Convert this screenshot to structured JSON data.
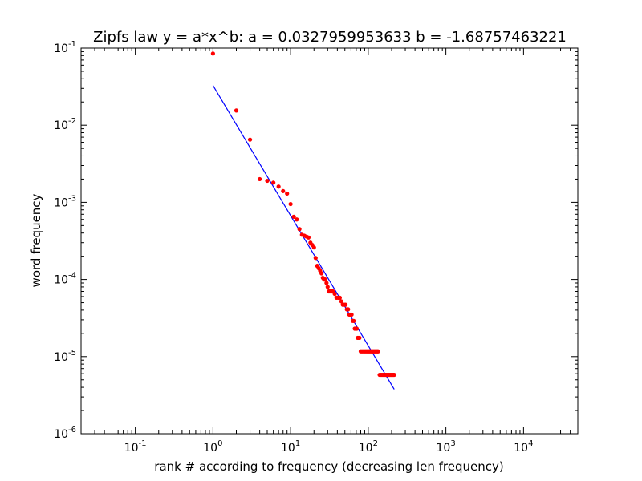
{
  "chart_data": {
    "type": "scatter",
    "title": "Zipfs law y = a*x^b: a = 0.0327959953633 b = -1.68757463221",
    "xlabel": "rank # according to frequency (decreasing len frequency)",
    "ylabel": "word frequency",
    "x_scale": "log",
    "y_scale": "log",
    "xlim": [
      0.02,
      50000
    ],
    "ylim": [
      1e-06,
      0.1
    ],
    "x_ticks": [
      {
        "value": 0.1,
        "base": "10",
        "exp": "-1"
      },
      {
        "value": 1,
        "base": "10",
        "exp": "0"
      },
      {
        "value": 10,
        "base": "10",
        "exp": "1"
      },
      {
        "value": 100,
        "base": "10",
        "exp": "2"
      },
      {
        "value": 1000,
        "base": "10",
        "exp": "3"
      },
      {
        "value": 10000,
        "base": "10",
        "exp": "4"
      }
    ],
    "y_ticks": [
      {
        "value": 0.1,
        "base": "10",
        "exp": "-1"
      },
      {
        "value": 0.01,
        "base": "10",
        "exp": "-2"
      },
      {
        "value": 0.001,
        "base": "10",
        "exp": "-3"
      },
      {
        "value": 0.0001,
        "base": "10",
        "exp": "-4"
      },
      {
        "value": 1e-05,
        "base": "10",
        "exp": "-5"
      },
      {
        "value": 1e-06,
        "base": "10",
        "exp": "-6"
      }
    ],
    "grid": false,
    "series": [
      {
        "kind": "scatter",
        "color": "#ff0000",
        "points": [
          [
            1,
            0.085
          ],
          [
            2,
            0.0155
          ],
          [
            3,
            0.0065
          ],
          [
            4,
            0.002
          ],
          [
            5,
            0.0019
          ],
          [
            6,
            0.0018
          ],
          [
            7,
            0.0016
          ],
          [
            8,
            0.0014
          ],
          [
            9,
            0.0013
          ],
          [
            10,
            0.00095
          ],
          [
            11,
            0.00065
          ],
          [
            12,
            0.0006
          ],
          [
            13,
            0.00045
          ],
          [
            14,
            0.00038
          ],
          [
            15,
            0.00037
          ],
          [
            16,
            0.00036
          ],
          [
            17,
            0.00035
          ],
          [
            18,
            0.0003
          ],
          [
            19,
            0.00028
          ],
          [
            20,
            0.00026
          ],
          [
            21,
            0.00019
          ],
          [
            22,
            0.00015
          ],
          [
            23,
            0.00014
          ],
          [
            24,
            0.00013
          ],
          [
            25,
            0.00012
          ],
          [
            26,
            0.000105
          ],
          [
            27,
            0.0001
          ],
          [
            28,
            0.0001
          ],
          [
            29,
            9e-05
          ],
          [
            30,
            8e-05
          ],
          [
            31,
            7e-05
          ],
          [
            32,
            7e-05
          ],
          [
            33,
            7e-05
          ],
          [
            34,
            7e-05
          ],
          [
            35,
            7e-05
          ],
          [
            37,
            6.5e-05
          ],
          [
            39,
            5.8e-05
          ],
          [
            41,
            5.8e-05
          ],
          [
            43,
            5.8e-05
          ],
          [
            45,
            5.2e-05
          ],
          [
            47,
            4.7e-05
          ],
          [
            49,
            4.7e-05
          ],
          [
            51,
            4.7e-05
          ],
          [
            53,
            4.1e-05
          ],
          [
            55,
            4.1e-05
          ],
          [
            57,
            3.5e-05
          ],
          [
            59,
            3.5e-05
          ],
          [
            61,
            3.5e-05
          ],
          [
            63,
            2.9e-05
          ],
          [
            65,
            2.9e-05
          ],
          [
            67,
            2.3e-05
          ],
          [
            69,
            2.3e-05
          ],
          [
            71,
            2.3e-05
          ],
          [
            73,
            1.75e-05
          ],
          [
            75,
            1.75e-05
          ],
          [
            77,
            1.75e-05
          ],
          [
            80,
            1.17e-05
          ],
          [
            83,
            1.17e-05
          ],
          [
            86,
            1.17e-05
          ],
          [
            89,
            1.17e-05
          ],
          [
            92,
            1.17e-05
          ],
          [
            95,
            1.17e-05
          ],
          [
            98,
            1.17e-05
          ],
          [
            101,
            1.17e-05
          ],
          [
            104,
            1.17e-05
          ],
          [
            107,
            1.17e-05
          ],
          [
            110,
            1.17e-05
          ],
          [
            113,
            1.17e-05
          ],
          [
            116,
            1.17e-05
          ],
          [
            119,
            1.17e-05
          ],
          [
            122,
            1.17e-05
          ],
          [
            125,
            1.17e-05
          ],
          [
            128,
            1.17e-05
          ],
          [
            131,
            1.17e-05
          ],
          [
            134,
            1.17e-05
          ],
          [
            140,
            5.8e-06
          ],
          [
            144,
            5.8e-06
          ],
          [
            148,
            5.8e-06
          ],
          [
            152,
            5.8e-06
          ],
          [
            156,
            5.8e-06
          ],
          [
            160,
            5.8e-06
          ],
          [
            164,
            5.8e-06
          ],
          [
            168,
            5.8e-06
          ],
          [
            172,
            5.8e-06
          ],
          [
            176,
            5.8e-06
          ],
          [
            180,
            5.8e-06
          ],
          [
            184,
            5.8e-06
          ],
          [
            188,
            5.8e-06
          ],
          [
            192,
            5.8e-06
          ],
          [
            196,
            5.8e-06
          ],
          [
            200,
            5.8e-06
          ],
          [
            204,
            5.8e-06
          ],
          [
            208,
            5.8e-06
          ],
          [
            212,
            5.8e-06
          ],
          [
            216,
            5.8e-06
          ]
        ]
      },
      {
        "kind": "line",
        "color": "#0000ff",
        "fit": {
          "a": 0.0327959953633,
          "b": -1.68757463221
        },
        "x_range": [
          1,
          216
        ]
      }
    ]
  }
}
